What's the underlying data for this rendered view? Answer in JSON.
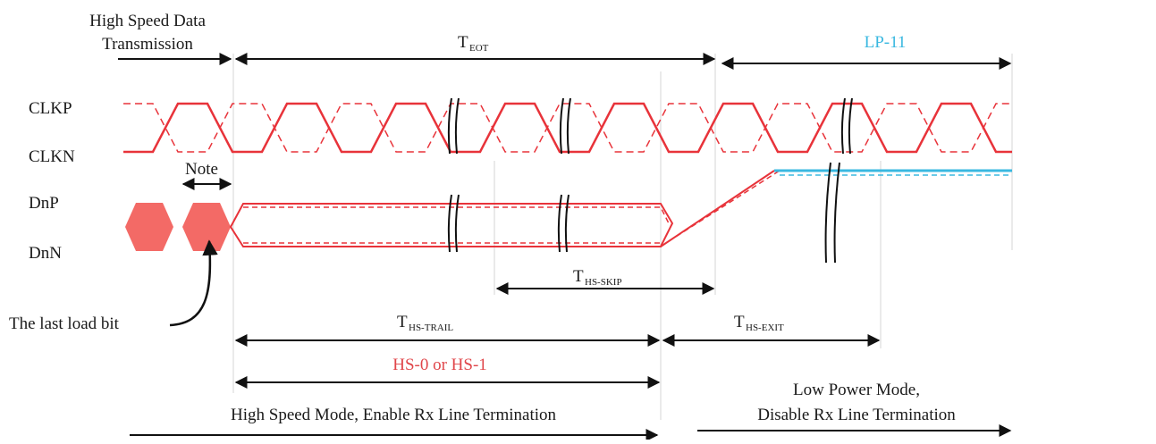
{
  "colors": {
    "signal": "#e8333a",
    "signal_fill": "#f0706e",
    "lp_state": "#3ab8e0",
    "arrow": "#111111",
    "guide": "#cfcfcf"
  },
  "labels": {
    "hs_data_line1": "High Speed Data",
    "hs_data_line2": "Transmission",
    "t_eot_main": "T",
    "t_eot_sub": "EOT",
    "lp11": "LP-11",
    "clkp": "CLKP",
    "clkn": "CLKN",
    "note": "Note",
    "dnp": "DnP",
    "dnn": "DnN",
    "ths_skip_main": "T",
    "ths_skip_sub": "HS-SKIP",
    "last_load_bit": "The last load bit",
    "ths_trail_main": "T",
    "ths_trail_sub": "HS-TRAIL",
    "ths_exit_main": "T",
    "ths_exit_sub": "HS-EXIT",
    "hs0_hs1": "HS-0 or HS-1",
    "hs_mode": "High Speed Mode, Enable Rx Line Termination",
    "lp_mode_line1": "Low Power Mode,",
    "lp_mode_line2": "Disable Rx Line Termination"
  },
  "icons": {
    "curved_arrow": "curved-arrow-icon",
    "break_mark": "break-mark-icon",
    "data_bit": "hexagon-bit-icon"
  }
}
